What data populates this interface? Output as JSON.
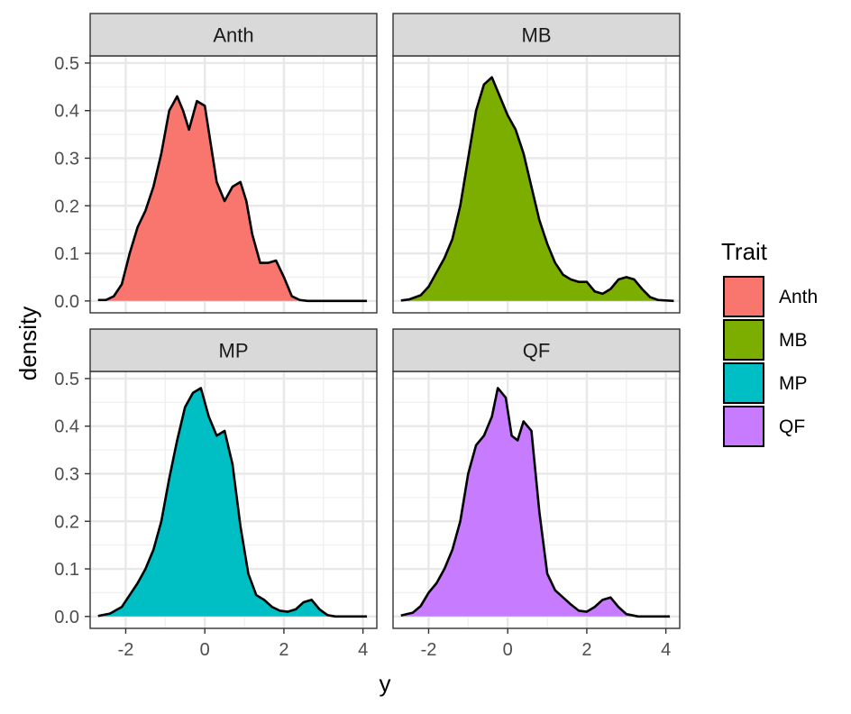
{
  "chart_data": {
    "type": "area",
    "subtype": "faceted-density",
    "title": "",
    "xlabel": "y",
    "ylabel": "density",
    "xlim": [
      -2.9,
      4.35
    ],
    "ylim": [
      -0.025,
      0.515
    ],
    "x_ticks": [
      -2,
      0,
      2,
      4
    ],
    "x_tick_labels": [
      "-2",
      "0",
      "2",
      "4"
    ],
    "y_ticks": [
      0.0,
      0.1,
      0.2,
      0.3,
      0.4,
      0.5
    ],
    "y_tick_labels": [
      "0.0",
      "0.1",
      "0.2",
      "0.3",
      "0.4",
      "0.5"
    ],
    "grid": true,
    "legend": {
      "title": "Trait",
      "position": "right",
      "entries": [
        "Anth",
        "MB",
        "MP",
        "QF"
      ]
    },
    "series": [
      {
        "name": "Anth",
        "color": "#F8766D",
        "x": [
          -2.7,
          -2.5,
          -2.3,
          -2.1,
          -1.9,
          -1.7,
          -1.5,
          -1.3,
          -1.1,
          -0.9,
          -0.7,
          -0.55,
          -0.4,
          -0.2,
          0.0,
          0.15,
          0.3,
          0.5,
          0.7,
          0.9,
          1.05,
          1.2,
          1.4,
          1.6,
          1.8,
          2.0,
          2.2,
          2.4,
          2.6,
          3.0,
          3.5,
          4.1
        ],
        "y": [
          0.002,
          0.002,
          0.01,
          0.035,
          0.1,
          0.155,
          0.19,
          0.24,
          0.31,
          0.4,
          0.43,
          0.4,
          0.36,
          0.42,
          0.41,
          0.33,
          0.25,
          0.21,
          0.24,
          0.25,
          0.21,
          0.14,
          0.08,
          0.08,
          0.085,
          0.05,
          0.01,
          0.002,
          0.0,
          0.0,
          0.0,
          0.0
        ]
      },
      {
        "name": "MB",
        "color": "#7CAE00",
        "x": [
          -2.7,
          -2.5,
          -2.2,
          -2.0,
          -1.8,
          -1.6,
          -1.4,
          -1.2,
          -1.0,
          -0.8,
          -0.6,
          -0.4,
          -0.2,
          0.0,
          0.2,
          0.4,
          0.6,
          0.8,
          1.0,
          1.2,
          1.4,
          1.6,
          1.8,
          2.0,
          2.2,
          2.4,
          2.6,
          2.8,
          3.0,
          3.2,
          3.4,
          3.6,
          3.8,
          4.2
        ],
        "y": [
          0.001,
          0.003,
          0.012,
          0.03,
          0.06,
          0.09,
          0.13,
          0.2,
          0.3,
          0.4,
          0.455,
          0.47,
          0.43,
          0.39,
          0.36,
          0.31,
          0.24,
          0.17,
          0.12,
          0.08,
          0.055,
          0.045,
          0.04,
          0.04,
          0.02,
          0.015,
          0.025,
          0.045,
          0.05,
          0.045,
          0.025,
          0.008,
          0.002,
          0.0
        ]
      },
      {
        "name": "MP",
        "color": "#00BFC4",
        "x": [
          -2.7,
          -2.4,
          -2.1,
          -1.9,
          -1.7,
          -1.5,
          -1.3,
          -1.1,
          -0.9,
          -0.7,
          -0.5,
          -0.3,
          -0.1,
          0.1,
          0.3,
          0.5,
          0.7,
          0.9,
          1.1,
          1.3,
          1.5,
          1.7,
          1.9,
          2.1,
          2.3,
          2.5,
          2.7,
          2.9,
          3.1,
          3.3,
          3.6,
          4.1
        ],
        "y": [
          0.001,
          0.006,
          0.02,
          0.045,
          0.07,
          0.1,
          0.14,
          0.2,
          0.29,
          0.37,
          0.44,
          0.47,
          0.48,
          0.42,
          0.38,
          0.39,
          0.32,
          0.19,
          0.09,
          0.045,
          0.035,
          0.02,
          0.012,
          0.01,
          0.015,
          0.03,
          0.035,
          0.015,
          0.003,
          0.0,
          0.0,
          0.0
        ]
      },
      {
        "name": "QF",
        "color": "#C77CFF",
        "x": [
          -2.7,
          -2.4,
          -2.2,
          -2.0,
          -1.8,
          -1.6,
          -1.4,
          -1.2,
          -1.0,
          -0.8,
          -0.6,
          -0.4,
          -0.25,
          -0.05,
          0.1,
          0.25,
          0.4,
          0.6,
          0.8,
          1.0,
          1.2,
          1.4,
          1.6,
          1.8,
          2.0,
          2.2,
          2.4,
          2.6,
          2.8,
          3.0,
          3.3,
          3.7,
          4.1
        ],
        "y": [
          0.002,
          0.008,
          0.022,
          0.05,
          0.07,
          0.1,
          0.14,
          0.2,
          0.3,
          0.36,
          0.38,
          0.42,
          0.48,
          0.46,
          0.38,
          0.37,
          0.41,
          0.39,
          0.22,
          0.09,
          0.055,
          0.04,
          0.025,
          0.012,
          0.01,
          0.02,
          0.035,
          0.04,
          0.02,
          0.005,
          0.0,
          0.0,
          0.0
        ]
      }
    ]
  }
}
